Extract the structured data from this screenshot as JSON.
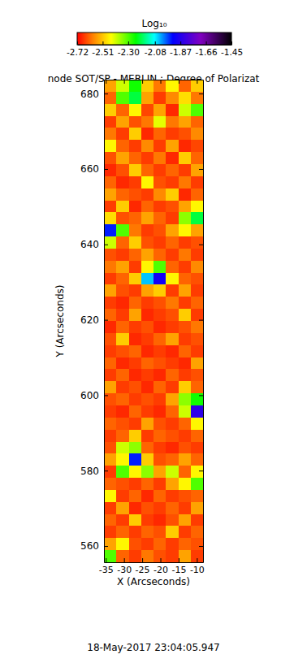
{
  "chart_data": {
    "type": "heatmap",
    "title": "node SOT/SP - MERLIN : Degree of Polarizat",
    "subtitle": "18-May-2017 23:04:05.947",
    "xlabel": "X (Arcseconds)",
    "ylabel": "Y (Arcseconds)",
    "xlim": [
      -35.5,
      -8.3
    ],
    "ylim": [
      555.7,
      683.7
    ],
    "xticks": [
      -35,
      -30,
      -25,
      -20,
      -15,
      -10
    ],
    "yticks": [
      560,
      580,
      600,
      620,
      640,
      660,
      680
    ],
    "x": [
      -33.8,
      -30.4,
      -27.0,
      -23.6,
      -20.2,
      -16.8,
      -13.4,
      -10.0
    ],
    "y": [
      682.1,
      678.9,
      675.7,
      672.5,
      669.3,
      666.1,
      662.9,
      659.7,
      656.5,
      653.3,
      650.1,
      646.9,
      643.7,
      640.5,
      637.3,
      634.1,
      630.9,
      627.7,
      624.5,
      621.3,
      618.1,
      614.9,
      611.7,
      608.5,
      605.3,
      602.1,
      598.9,
      595.7,
      592.5,
      589.3,
      586.1,
      582.9,
      579.7,
      576.5,
      573.3,
      570.1,
      566.9,
      563.7,
      560.5,
      557.3
    ],
    "z": [
      [
        -2.55,
        -2.4,
        -2.25,
        -2.5,
        -2.6,
        -2.45,
        -2.62,
        -2.5
      ],
      [
        -2.62,
        -2.3,
        -2.2,
        -2.55,
        -2.66,
        -2.58,
        -2.48,
        -2.6
      ],
      [
        -2.5,
        -2.62,
        -2.45,
        -2.65,
        -2.55,
        -2.68,
        -2.4,
        -2.3
      ],
      [
        -2.66,
        -2.55,
        -2.64,
        -2.6,
        -2.42,
        -2.6,
        -2.55,
        -2.62
      ],
      [
        -2.6,
        -2.66,
        -2.5,
        -2.68,
        -2.62,
        -2.66,
        -2.64,
        -2.58
      ],
      [
        -2.45,
        -2.62,
        -2.66,
        -2.58,
        -2.66,
        -2.55,
        -2.68,
        -2.65
      ],
      [
        -2.64,
        -2.55,
        -2.62,
        -2.66,
        -2.6,
        -2.68,
        -2.5,
        -2.62
      ],
      [
        -2.68,
        -2.64,
        -2.5,
        -2.62,
        -2.66,
        -2.62,
        -2.66,
        -2.55
      ],
      [
        -2.62,
        -2.68,
        -2.66,
        -2.45,
        -2.64,
        -2.66,
        -2.6,
        -2.66
      ],
      [
        -2.55,
        -2.62,
        -2.64,
        -2.66,
        -2.58,
        -2.5,
        -2.68,
        -2.62
      ],
      [
        -2.66,
        -2.5,
        -2.68,
        -2.62,
        -2.66,
        -2.64,
        -2.55,
        -2.45
      ],
      [
        -2.48,
        -2.64,
        -2.62,
        -2.55,
        -2.62,
        -2.66,
        -2.35,
        -2.2
      ],
      [
        -1.95,
        -2.3,
        -2.6,
        -2.66,
        -2.64,
        -2.55,
        -2.45,
        -2.55
      ],
      [
        -2.4,
        -2.62,
        -2.5,
        -2.64,
        -2.66,
        -2.62,
        -2.66,
        -2.64
      ],
      [
        -2.64,
        -2.66,
        -2.62,
        -2.55,
        -2.62,
        -2.66,
        -2.6,
        -2.66
      ],
      [
        -2.6,
        -2.55,
        -2.66,
        -2.45,
        -2.3,
        -2.62,
        -2.66,
        -2.58
      ],
      [
        -2.66,
        -2.62,
        -2.5,
        -2.05,
        -1.9,
        -2.45,
        -2.62,
        -2.64
      ],
      [
        -2.55,
        -2.64,
        -2.66,
        -2.55,
        -2.5,
        -2.66,
        -2.55,
        -2.66
      ],
      [
        -2.66,
        -2.68,
        -2.62,
        -2.66,
        -2.64,
        -2.6,
        -2.66,
        -2.62
      ],
      [
        -2.62,
        -2.66,
        -2.55,
        -2.68,
        -2.66,
        -2.64,
        -2.5,
        -2.66
      ],
      [
        -2.68,
        -2.62,
        -2.66,
        -2.64,
        -2.68,
        -2.66,
        -2.64,
        -2.6
      ],
      [
        -2.64,
        -2.5,
        -2.68,
        -2.66,
        -2.62,
        -2.55,
        -2.66,
        -2.64
      ],
      [
        -2.66,
        -2.64,
        -2.62,
        -2.68,
        -2.66,
        -2.68,
        -2.62,
        -2.66
      ],
      [
        -2.62,
        -2.68,
        -2.66,
        -2.62,
        -2.64,
        -2.66,
        -2.68,
        -2.55
      ],
      [
        -2.66,
        -2.62,
        -2.68,
        -2.66,
        -2.68,
        -2.62,
        -2.66,
        -2.64
      ],
      [
        -2.55,
        -2.66,
        -2.64,
        -2.68,
        -2.62,
        -2.66,
        -2.5,
        -2.62
      ],
      [
        -2.64,
        -2.62,
        -2.66,
        -2.64,
        -2.66,
        -2.55,
        -2.35,
        -2.25
      ],
      [
        -2.66,
        -2.68,
        -2.62,
        -2.66,
        -2.68,
        -2.62,
        -2.4,
        -1.85
      ],
      [
        -2.62,
        -2.64,
        -2.66,
        -2.55,
        -2.64,
        -2.66,
        -2.62,
        -2.45
      ],
      [
        -2.66,
        -2.62,
        -2.5,
        -2.66,
        -2.62,
        -2.64,
        -2.66,
        -2.62
      ],
      [
        -2.64,
        -2.4,
        -2.35,
        -2.62,
        -2.66,
        -2.68,
        -2.64,
        -2.66
      ],
      [
        -2.55,
        -2.45,
        -1.95,
        -2.5,
        -2.64,
        -2.62,
        -2.55,
        -2.62
      ],
      [
        -2.66,
        -2.3,
        -2.45,
        -2.35,
        -2.55,
        -2.4,
        -2.62,
        -2.45
      ],
      [
        -2.62,
        -2.64,
        -2.66,
        -2.62,
        -2.66,
        -2.55,
        -2.45,
        -2.3
      ],
      [
        -2.45,
        -2.66,
        -2.62,
        -2.68,
        -2.62,
        -2.66,
        -2.64,
        -2.62
      ],
      [
        -2.66,
        -2.55,
        -2.68,
        -2.64,
        -2.66,
        -2.62,
        -2.66,
        -2.55
      ],
      [
        -2.62,
        -2.66,
        -2.5,
        -2.66,
        -2.68,
        -2.64,
        -2.55,
        -2.66
      ],
      [
        -2.66,
        -2.62,
        -2.66,
        -2.62,
        -2.64,
        -2.5,
        -2.66,
        -2.62
      ],
      [
        -2.55,
        -2.45,
        -2.64,
        -2.66,
        -2.62,
        -2.66,
        -2.62,
        -2.64
      ],
      [
        -2.3,
        -2.62,
        -2.66,
        -2.6,
        -2.64,
        -2.66,
        -2.55,
        -2.66
      ]
    ],
    "colorbar": {
      "title": "Log₁₀",
      "range": [
        -2.72,
        -1.45
      ],
      "ticks": [
        -2.72,
        -2.51,
        {
          "value": -2.3,
          "label": "-2.30"
        },
        -2.08,
        -1.87,
        -1.66,
        -1.45
      ]
    }
  }
}
